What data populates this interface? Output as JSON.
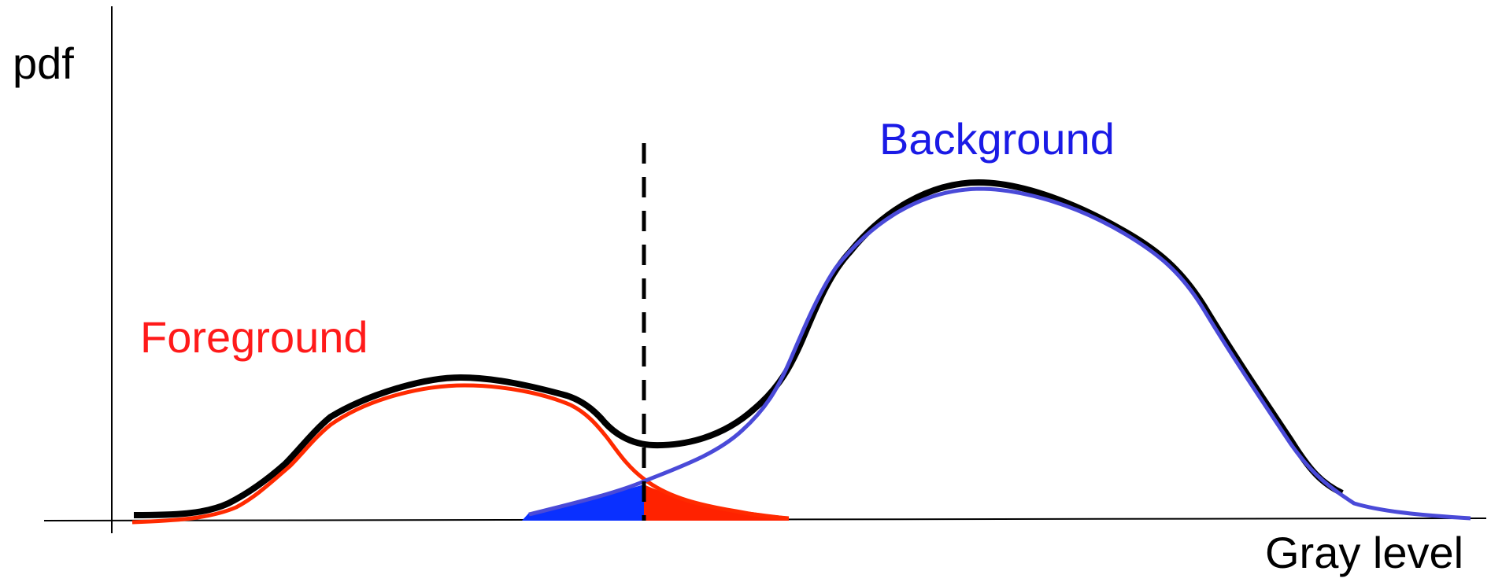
{
  "labels": {
    "y_axis": "pdf",
    "x_axis": "Gray level",
    "foreground": "Foreground",
    "background": "Background"
  },
  "colors": {
    "foreground": "#ff2a00",
    "foreground_fill": "#ff2200",
    "background": "#4a4ad8",
    "background_fill": "#0a30ff",
    "combined": "#000000",
    "axes": "#000000",
    "threshold": "#000000",
    "foreground_label": "#ff1a1a",
    "background_label": "#1a1ae6"
  }
}
